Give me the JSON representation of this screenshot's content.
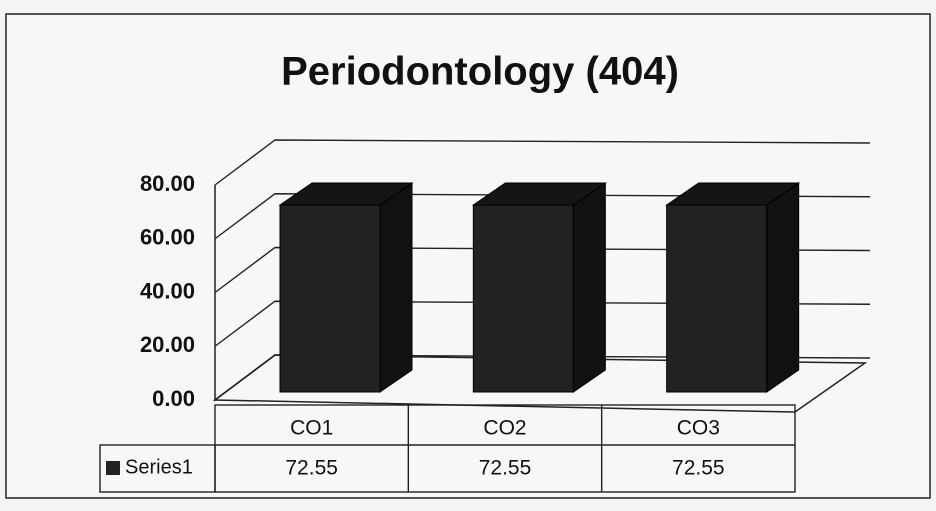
{
  "chart_data": {
    "type": "bar3d",
    "title": "Periodontology (404)",
    "categories": [
      "CO1",
      "CO2",
      "CO3"
    ],
    "series": [
      {
        "name": "Series1",
        "color": "#222222",
        "values": [
          72.55,
          72.55,
          72.55
        ]
      }
    ],
    "ylim": [
      0,
      80
    ],
    "yticks": [
      {
        "value": 0,
        "label": "0.00"
      },
      {
        "value": 20,
        "label": "20.00"
      },
      {
        "value": 40,
        "label": "40.00"
      },
      {
        "value": 60,
        "label": "60.00"
      },
      {
        "value": 80,
        "label": "80.00"
      }
    ],
    "grid": true,
    "data_table": true
  }
}
